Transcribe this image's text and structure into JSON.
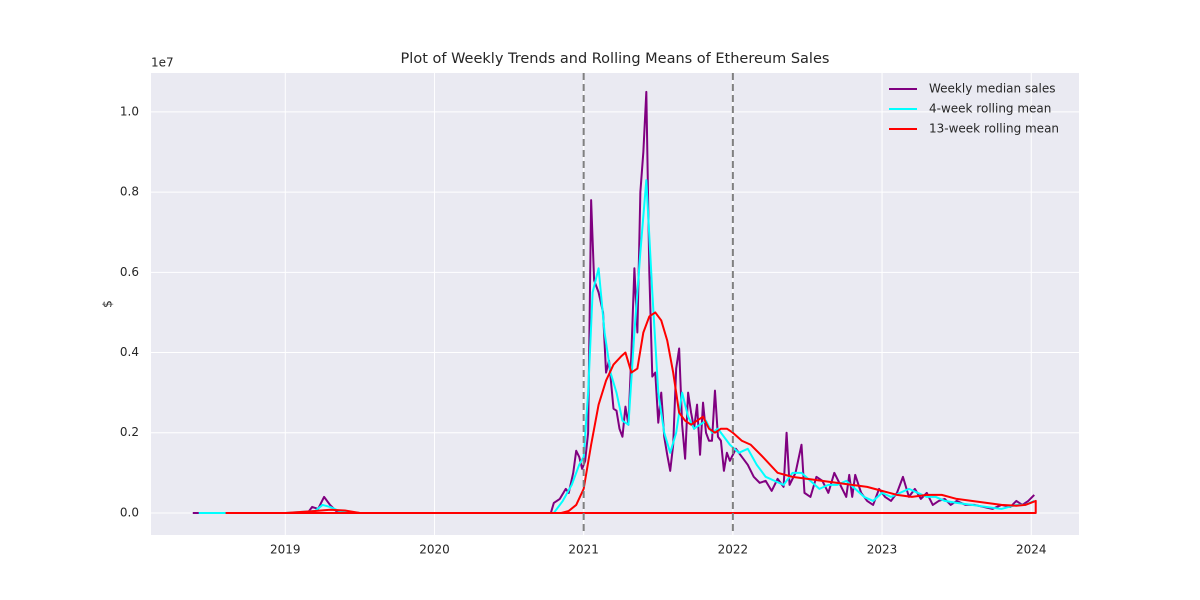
{
  "chart_data": {
    "type": "line",
    "title": "Plot of Weekly Trends and Rolling Means of Ethereum Sales",
    "ylabel": "$",
    "y_offset_label": "1e7",
    "xlim": [
      2018.1,
      2024.32
    ],
    "ylim": [
      -0.055,
      1.097
    ],
    "xticks": [
      2019,
      2020,
      2021,
      2022,
      2023,
      2024
    ],
    "yticks": [
      {
        "value": 0,
        "label": "0.0"
      },
      0.2,
      0.4,
      0.6,
      0.8,
      {
        "value": 1,
        "label": "1.0"
      }
    ],
    "vlines": [
      2021,
      2022
    ],
    "vline_color": "#808080",
    "grid": true,
    "legend": "upper right",
    "series": [
      {
        "name": "Weekly median sales",
        "color": "#800080",
        "x": [
          2018.38,
          2018.6,
          2019.0,
          2019.15,
          2019.18,
          2019.22,
          2019.26,
          2019.3,
          2019.34,
          2019.5,
          2020.0,
          2020.5,
          2020.78,
          2020.8,
          2020.84,
          2020.88,
          2020.9,
          2020.93,
          2020.95,
          2020.97,
          2020.99,
          2021.01,
          2021.03,
          2021.05,
          2021.07,
          2021.1,
          2021.13,
          2021.15,
          2021.17,
          2021.2,
          2021.22,
          2021.24,
          2021.26,
          2021.28,
          2021.3,
          2021.32,
          2021.34,
          2021.36,
          2021.38,
          2021.4,
          2021.42,
          2021.44,
          2021.46,
          2021.48,
          2021.5,
          2021.52,
          2021.54,
          2021.56,
          2021.58,
          2021.6,
          2021.62,
          2021.64,
          2021.66,
          2021.68,
          2021.7,
          2021.72,
          2021.74,
          2021.76,
          2021.78,
          2021.8,
          2021.82,
          2021.84,
          2021.86,
          2021.88,
          2021.9,
          2021.92,
          2021.94,
          2021.96,
          2021.98,
          2022.02,
          2022.06,
          2022.1,
          2022.14,
          2022.18,
          2022.22,
          2022.26,
          2022.3,
          2022.34,
          2022.36,
          2022.38,
          2022.42,
          2022.46,
          2022.48,
          2022.52,
          2022.56,
          2022.6,
          2022.64,
          2022.68,
          2022.72,
          2022.76,
          2022.78,
          2022.8,
          2022.82,
          2022.86,
          2022.9,
          2022.94,
          2022.98,
          2023.02,
          2023.06,
          2023.1,
          2023.14,
          2023.18,
          2023.22,
          2023.26,
          2023.3,
          2023.34,
          2023.38,
          2023.42,
          2023.46,
          2023.5,
          2023.56,
          2023.62,
          2023.68,
          2023.74,
          2023.8,
          2023.86,
          2023.9,
          2023.94,
          2023.98,
          2024.02
        ],
        "values": [
          0,
          0,
          0,
          0,
          0.015,
          0.01,
          0.04,
          0.02,
          0.005,
          0,
          0,
          0,
          0,
          0.025,
          0.035,
          0.06,
          0.05,
          0.1,
          0.155,
          0.14,
          0.11,
          0.13,
          0.2,
          0.78,
          0.58,
          0.55,
          0.5,
          0.35,
          0.38,
          0.26,
          0.255,
          0.21,
          0.19,
          0.265,
          0.22,
          0.4,
          0.61,
          0.45,
          0.8,
          0.9,
          1.05,
          0.6,
          0.34,
          0.35,
          0.225,
          0.3,
          0.19,
          0.145,
          0.105,
          0.17,
          0.36,
          0.41,
          0.22,
          0.135,
          0.3,
          0.25,
          0.21,
          0.27,
          0.145,
          0.275,
          0.2,
          0.18,
          0.18,
          0.305,
          0.19,
          0.18,
          0.105,
          0.15,
          0.13,
          0.16,
          0.14,
          0.12,
          0.09,
          0.075,
          0.08,
          0.055,
          0.085,
          0.065,
          0.2,
          0.07,
          0.1,
          0.17,
          0.05,
          0.04,
          0.09,
          0.08,
          0.05,
          0.1,
          0.07,
          0.04,
          0.095,
          0.04,
          0.095,
          0.05,
          0.03,
          0.02,
          0.06,
          0.04,
          0.03,
          0.05,
          0.09,
          0.04,
          0.06,
          0.035,
          0.05,
          0.02,
          0.03,
          0.035,
          0.02,
          0.03,
          0.02,
          0.02,
          0.015,
          0.01,
          0.02,
          0.015,
          0.03,
          0.02,
          0.03,
          0.045
        ]
      },
      {
        "name": "4-week rolling mean",
        "color": "#00ffff",
        "x": [
          2018.42,
          2018.6,
          2019.0,
          2019.2,
          2019.25,
          2019.3,
          2019.36,
          2019.5,
          2020.0,
          2020.5,
          2020.8,
          2020.86,
          2020.92,
          2020.97,
          2021.0,
          2021.03,
          2021.06,
          2021.1,
          2021.14,
          2021.18,
          2021.22,
          2021.26,
          2021.3,
          2021.34,
          2021.38,
          2021.42,
          2021.46,
          2021.5,
          2021.54,
          2021.58,
          2021.62,
          2021.66,
          2021.7,
          2021.74,
          2021.78,
          2021.82,
          2021.86,
          2021.9,
          2021.94,
          2021.98,
          2022.04,
          2022.1,
          2022.16,
          2022.22,
          2022.28,
          2022.34,
          2022.4,
          2022.46,
          2022.52,
          2022.58,
          2022.64,
          2022.7,
          2022.76,
          2022.82,
          2022.88,
          2022.94,
          2023.0,
          2023.06,
          2023.12,
          2023.18,
          2023.24,
          2023.3,
          2023.36,
          2023.42,
          2023.5,
          2023.6,
          2023.7,
          2023.8,
          2023.9,
          2023.96,
          2024.02
        ],
        "values": [
          0,
          0,
          0,
          0.005,
          0.02,
          0.015,
          0.005,
          0,
          0,
          0,
          0,
          0.03,
          0.07,
          0.12,
          0.14,
          0.3,
          0.55,
          0.61,
          0.45,
          0.35,
          0.3,
          0.23,
          0.22,
          0.45,
          0.65,
          0.83,
          0.55,
          0.3,
          0.2,
          0.15,
          0.2,
          0.3,
          0.24,
          0.21,
          0.22,
          0.23,
          0.2,
          0.21,
          0.19,
          0.17,
          0.15,
          0.16,
          0.12,
          0.09,
          0.08,
          0.07,
          0.1,
          0.1,
          0.08,
          0.06,
          0.07,
          0.07,
          0.08,
          0.06,
          0.04,
          0.03,
          0.05,
          0.04,
          0.05,
          0.06,
          0.05,
          0.04,
          0.04,
          0.03,
          0.025,
          0.02,
          0.015,
          0.01,
          0.02,
          0.02,
          0.03
        ]
      },
      {
        "name": "13-week rolling mean",
        "color": "#ff0000",
        "x": [
          2018.6,
          2019.0,
          2019.2,
          2019.3,
          2019.4,
          2019.5,
          2020.0,
          2020.5,
          2020.85,
          2020.9,
          2020.95,
          2021.0,
          2021.05,
          2021.1,
          2021.15,
          2021.2,
          2021.25,
          2021.28,
          2021.32,
          2021.36,
          2021.4,
          2021.44,
          2021.48,
          2021.52,
          2021.56,
          2021.6,
          2021.64,
          2021.68,
          2021.72,
          2021.76,
          2021.8,
          2021.84,
          2021.88,
          2021.92,
          2021.96,
          2022.0,
          2022.06,
          2022.12,
          2022.2,
          2022.3,
          2022.4,
          2022.5,
          2022.6,
          2022.7,
          2022.8,
          2022.9,
          2023.0,
          2023.1,
          2023.2,
          2023.3,
          2023.4,
          2023.5,
          2023.6,
          2023.7,
          2023.8,
          2023.9,
          2023.96,
          2024.03,
          2024.03,
          2018.6
        ],
        "values": [
          0,
          0,
          0.005,
          0.008,
          0.006,
          0,
          0,
          0,
          0,
          0.005,
          0.02,
          0.06,
          0.17,
          0.27,
          0.33,
          0.37,
          0.39,
          0.4,
          0.35,
          0.36,
          0.45,
          0.49,
          0.5,
          0.48,
          0.43,
          0.35,
          0.25,
          0.23,
          0.22,
          0.23,
          0.24,
          0.21,
          0.2,
          0.21,
          0.21,
          0.2,
          0.18,
          0.17,
          0.14,
          0.1,
          0.09,
          0.085,
          0.08,
          0.075,
          0.07,
          0.065,
          0.055,
          0.045,
          0.04,
          0.045,
          0.045,
          0.035,
          0.03,
          0.025,
          0.02,
          0.018,
          0.02,
          0.03,
          0,
          0
        ]
      }
    ]
  }
}
